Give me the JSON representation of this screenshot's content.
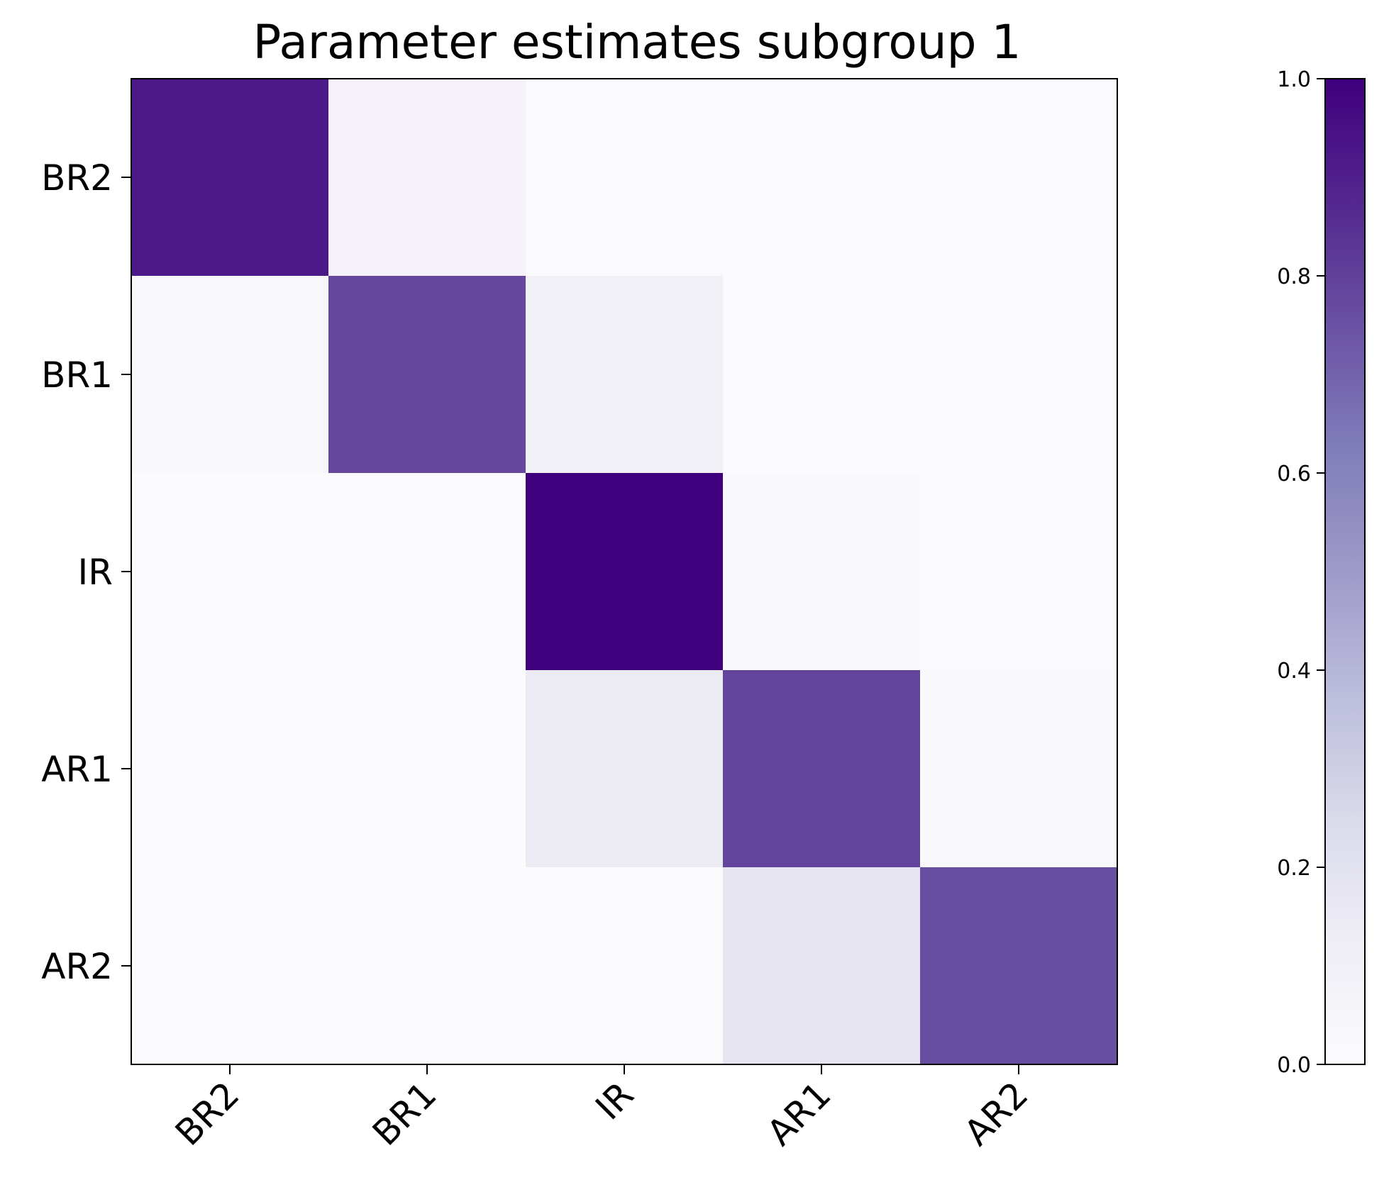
{
  "chart_data": {
    "type": "heatmap",
    "title": "Parameter estimates subgroup 1",
    "x_categories": [
      "BR2",
      "BR1",
      "IR",
      "AR1",
      "AR2"
    ],
    "y_categories": [
      "BR2",
      "BR1",
      "IR",
      "AR1",
      "AR2"
    ],
    "values": [
      [
        0.92,
        0.07,
        0.02,
        0.01,
        0.01
      ],
      [
        0.04,
        0.78,
        0.1,
        0.01,
        0.01
      ],
      [
        0.01,
        0.02,
        1.0,
        0.03,
        0.01
      ],
      [
        0.01,
        0.01,
        0.14,
        0.79,
        0.03
      ],
      [
        0.01,
        0.01,
        0.01,
        0.18,
        0.76
      ]
    ],
    "colorbar": {
      "range": [
        0.0,
        1.0
      ],
      "ticks": [
        "0.0",
        "0.2",
        "0.4",
        "0.6",
        "0.8",
        "1.0"
      ],
      "colormap": "Purples",
      "low_color": "#fcfbfd",
      "high_color": "#3f007d"
    },
    "grid": false
  }
}
